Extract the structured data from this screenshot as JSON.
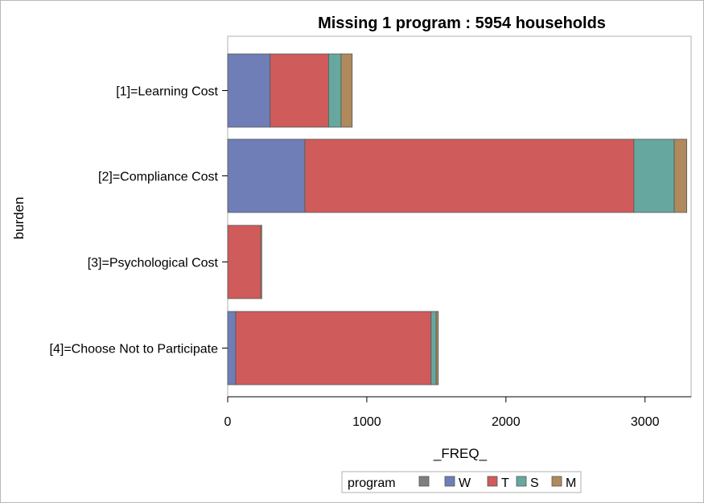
{
  "chart_data": {
    "type": "bar",
    "orientation": "horizontal",
    "stacked": true,
    "title": "Missing 1 program : 5954 households",
    "xlabel": "_FREQ_",
    "ylabel": "burden",
    "xlim": [
      0,
      3300
    ],
    "xticks": [
      "0",
      "1000",
      "2000",
      "3000"
    ],
    "xtick_values": [
      0,
      1000,
      2000,
      3000
    ],
    "categories": [
      "[1]=Learning Cost",
      "[2]=Compliance Cost",
      "[3]=Psychological Cost",
      "[4]=Choose Not to Participate"
    ],
    "legend": {
      "title": "program",
      "position": "bottom"
    },
    "series": [
      {
        "name": "",
        "color": "#7f7f7f",
        "values": [
          0,
          0,
          0,
          0
        ]
      },
      {
        "name": "W",
        "color": "#6f7eb7",
        "values": [
          305,
          555,
          0,
          58
        ]
      },
      {
        "name": "T",
        "color": "#d05b5b",
        "values": [
          420,
          2365,
          237,
          1404
        ]
      },
      {
        "name": "S",
        "color": "#66a8a0",
        "values": [
          90,
          290,
          0,
          37
        ]
      },
      {
        "name": "M",
        "color": "#b08a5c",
        "values": [
          80,
          90,
          8,
          15
        ]
      }
    ],
    "grid": false
  }
}
